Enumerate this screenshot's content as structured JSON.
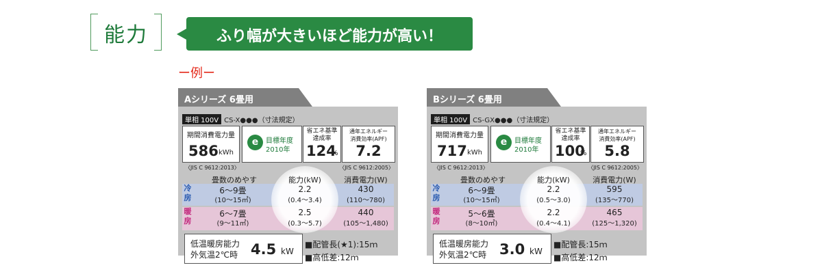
{
  "header": {
    "section_title": "能力",
    "callout": "ふり幅が大きいほど能力が高い！",
    "example_label": "ー例ー"
  },
  "colors": {
    "green": "#2a8a43",
    "red": "#e4291a",
    "cool": "#bfcbe3",
    "heat": "#e6c6d8"
  },
  "common": {
    "phase_badge": "単相 100V",
    "period_label": "期間消費電力量",
    "target_label": "目標年度",
    "target_year": "2010年",
    "target_logo_glyph": "e",
    "rate_label_1": "省エネ基準",
    "rate_label_2": "達成率",
    "rate_unit": "%",
    "apf_label_1": "通年エネルギー",
    "apf_label_2": "消費効率(APF)",
    "jis_left": "〈JIS C 9612:2013〉",
    "jis_right": "〈JIS C 9612:2005〉",
    "col_room": "畳数のめやす",
    "col_capacity": "能力(kW)",
    "col_power": "消費電力(W)",
    "mode_cool": "冷房",
    "mode_heat": "暖房",
    "low_temp_1": "低温暖房能力",
    "low_temp_2": "外気温2℃時",
    "low_temp_unit": "kW",
    "height_diff": "■高低差:12ｍ"
  },
  "cards": [
    {
      "title": "Aシリーズ  6畳用",
      "model": "CS-X●●●（寸法規定）",
      "period_value": "586",
      "period_unit": "kWh",
      "rate_value": "124",
      "apf_value": "7.2",
      "cool": {
        "room": "6～9畳",
        "room_sub": "(10～15㎡)",
        "capacity": "2.2",
        "capacity_range": "(0.4～3.4)",
        "power": "430",
        "power_range": "(110～780)"
      },
      "heat": {
        "room": "6～7畳",
        "room_sub": "(9～11㎡)",
        "capacity": "2.5",
        "capacity_range": "(0.3～5.7)",
        "power": "440",
        "power_range": "(105～1,480)"
      },
      "low_temp_value": "4.5",
      "pipe_length": "■配管長(★1):15ｍ"
    },
    {
      "title": "Bシリーズ  6畳用",
      "model": "CS-GX●●●（寸法規定）",
      "period_value": "717",
      "period_unit": "kWh",
      "rate_value": "100",
      "apf_value": "5.8",
      "cool": {
        "room": "6～9畳",
        "room_sub": "(10～15㎡)",
        "capacity": "2.2",
        "capacity_range": "(0.5～3.0)",
        "power": "595",
        "power_range": "(135～770)"
      },
      "heat": {
        "room": "5～6畳",
        "room_sub": "(8～10㎡)",
        "capacity": "2.2",
        "capacity_range": "(0.4～4.1)",
        "power": "465",
        "power_range": "(125～1,320)"
      },
      "low_temp_value": "3.0",
      "pipe_length": "■配管長:15ｍ"
    }
  ]
}
